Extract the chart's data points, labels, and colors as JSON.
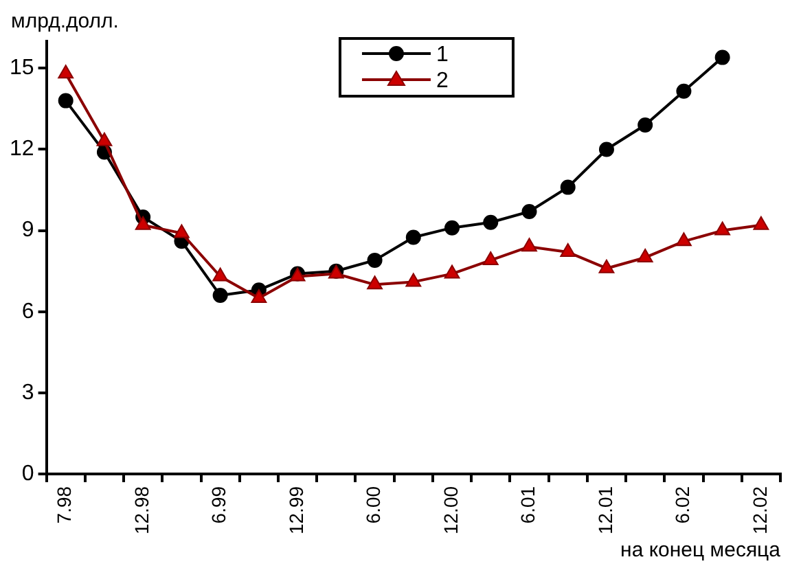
{
  "chart_data": {
    "type": "line",
    "ylabel": "млрд.долл.",
    "xlabel": "на конец месяца",
    "categories": [
      "7.98",
      null,
      "12.98",
      null,
      "6.99",
      null,
      "12.99",
      null,
      "6.00",
      null,
      "12.00",
      null,
      "6.01",
      null,
      "12.01",
      null,
      "6.02",
      null,
      "12.02"
    ],
    "series": [
      {
        "name": "1",
        "color": "#000000",
        "marker": "circle",
        "values": [
          13.8,
          11.9,
          9.5,
          8.6,
          6.6,
          6.8,
          7.4,
          7.5,
          7.9,
          8.75,
          9.1,
          9.3,
          9.7,
          10.6,
          12.0,
          12.9,
          14.15,
          15.4,
          null
        ]
      },
      {
        "name": "2",
        "color": "#8b0000",
        "marker": "triangle",
        "values": [
          14.8,
          12.3,
          9.2,
          8.9,
          7.3,
          6.5,
          7.3,
          7.4,
          7.0,
          7.1,
          7.4,
          7.9,
          8.4,
          8.2,
          7.6,
          8.0,
          8.6,
          9.0,
          9.2
        ]
      }
    ],
    "ylim": [
      0,
      16
    ],
    "yticks": [
      0,
      3,
      6,
      9,
      12,
      15
    ],
    "grid": false,
    "legend": "top"
  }
}
